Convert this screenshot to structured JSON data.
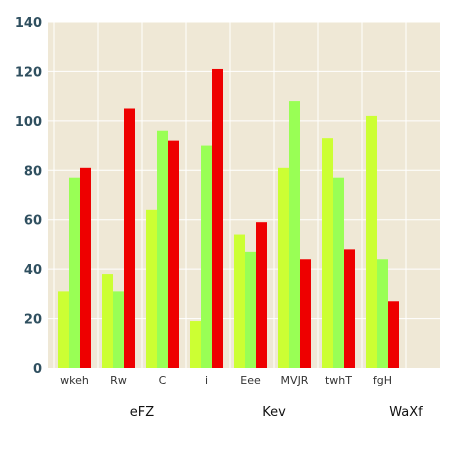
{
  "chart_data": {
    "type": "bar",
    "categories": [
      "wkeh",
      "Rw",
      "C",
      "i",
      "Eee",
      "MVJR",
      "twhT",
      "fgH"
    ],
    "groups": [
      "eFZ",
      "Kev",
      "WaXf"
    ],
    "series": [
      {
        "values": [
          31,
          38,
          64,
          19,
          54,
          81,
          93,
          102
        ]
      },
      {
        "values": [
          77,
          31,
          96,
          90,
          47,
          108,
          77,
          44
        ]
      },
      {
        "values": [
          81,
          105,
          92,
          121,
          59,
          44,
          48,
          27
        ]
      }
    ],
    "ylim": [
      0,
      140
    ],
    "yticks": [
      0,
      20,
      40,
      60,
      80,
      100,
      120,
      140
    ],
    "grid": true
  },
  "colors": {
    "plot_background": "#efe8d6",
    "gridline": "#ffffff",
    "series": [
      "#ccff33",
      "#99ff55",
      "#ee0000"
    ]
  }
}
